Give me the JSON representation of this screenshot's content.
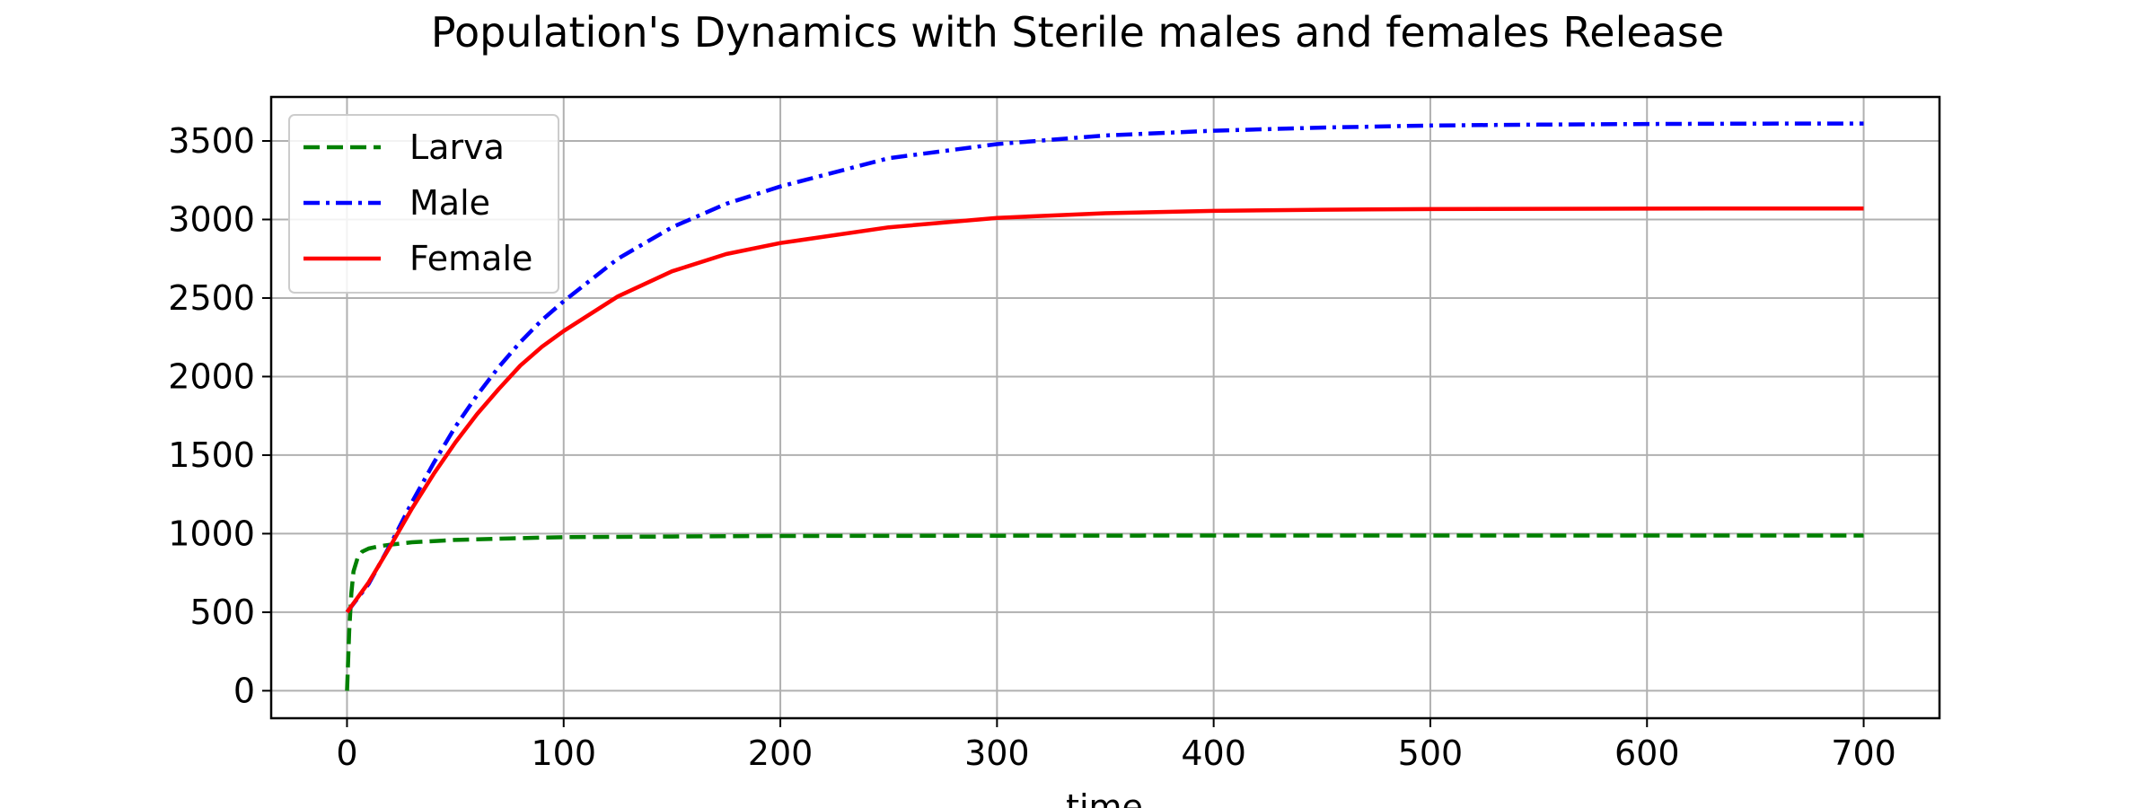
{
  "chart_data": {
    "type": "line",
    "title": "Population's Dynamics with Sterile males and females Release",
    "xlabel": "time",
    "ylabel": "",
    "xlim": [
      -35,
      735
    ],
    "ylim": [
      -175,
      3780
    ],
    "x_ticks": [
      0,
      100,
      200,
      300,
      400,
      500,
      600,
      700
    ],
    "y_ticks": [
      0,
      500,
      1000,
      1500,
      2000,
      2500,
      3000,
      3500
    ],
    "grid": true,
    "legend_position": "upper left",
    "series": [
      {
        "name": "Larva",
        "color": "#008000",
        "line_style": "dashed",
        "x": [
          0,
          1,
          2,
          3,
          5,
          7,
          10,
          15,
          20,
          30,
          50,
          75,
          100,
          150,
          200,
          300,
          400,
          500,
          600,
          700
        ],
        "values": [
          0,
          380,
          620,
          760,
          850,
          885,
          905,
          920,
          930,
          945,
          960,
          970,
          978,
          982,
          985,
          987,
          988,
          988,
          988,
          988
        ]
      },
      {
        "name": "Male",
        "color": "#0000ff",
        "line_style": "dashdot",
        "x": [
          0,
          10,
          20,
          30,
          40,
          50,
          60,
          70,
          80,
          90,
          100,
          125,
          150,
          175,
          200,
          250,
          300,
          350,
          400,
          450,
          500,
          550,
          600,
          650,
          700
        ],
        "values": [
          500,
          680,
          930,
          1200,
          1450,
          1680,
          1880,
          2060,
          2220,
          2360,
          2480,
          2750,
          2950,
          3100,
          3210,
          3390,
          3480,
          3535,
          3565,
          3585,
          3598,
          3604,
          3608,
          3610,
          3611
        ]
      },
      {
        "name": "Female",
        "color": "#ff0000",
        "line_style": "solid",
        "x": [
          0,
          10,
          20,
          30,
          40,
          50,
          60,
          70,
          80,
          90,
          100,
          125,
          150,
          175,
          200,
          250,
          300,
          350,
          400,
          450,
          500,
          550,
          600,
          650,
          700
        ],
        "values": [
          500,
          690,
          920,
          1160,
          1380,
          1580,
          1760,
          1920,
          2070,
          2190,
          2290,
          2510,
          2670,
          2780,
          2850,
          2950,
          3010,
          3040,
          3055,
          3062,
          3066,
          3068,
          3069,
          3070,
          3070
        ]
      }
    ]
  }
}
